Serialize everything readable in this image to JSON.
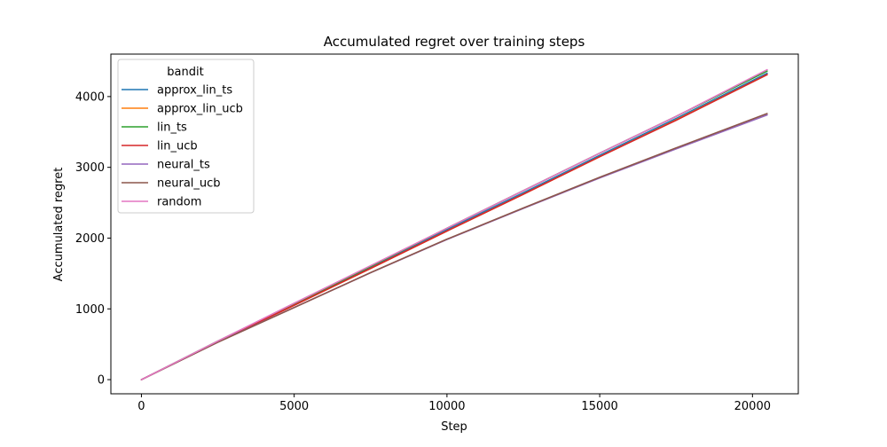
{
  "chart_data": {
    "type": "line",
    "title": "Accumulated regret over training steps",
    "xlabel": "Step",
    "ylabel": "Accumulated regret",
    "xlim": [
      -1000,
      21500
    ],
    "ylim": [
      -200,
      4600
    ],
    "xticks": [
      0,
      5000,
      10000,
      15000,
      20000
    ],
    "xtick_labels": [
      "0",
      "5000",
      "10000",
      "15000",
      "20000"
    ],
    "yticks": [
      0,
      1000,
      2000,
      3000,
      4000
    ],
    "ytick_labels": [
      "0",
      "1000",
      "2000",
      "3000",
      "4000"
    ],
    "grid": false,
    "legend": {
      "title": "bandit",
      "placement": "top-left"
    },
    "x": [
      0,
      2500,
      5000,
      7500,
      10000,
      12500,
      15000,
      17500,
      20480
    ],
    "series": [
      {
        "name": "approx_lin_ts",
        "color": "#1f77b4",
        "values": [
          0,
          540,
          1060,
          1580,
          2120,
          2640,
          3170,
          3690,
          4330
        ]
      },
      {
        "name": "approx_lin_ucb",
        "color": "#ff7f0e",
        "values": [
          0,
          535,
          1050,
          1570,
          2100,
          2620,
          3150,
          3670,
          4310
        ]
      },
      {
        "name": "lin_ts",
        "color": "#2ca02c",
        "values": [
          0,
          545,
          1070,
          1600,
          2140,
          2670,
          3200,
          3720,
          4360
        ]
      },
      {
        "name": "lin_ucb",
        "color": "#d62728",
        "values": [
          0,
          537,
          1052,
          1572,
          2100,
          2620,
          3150,
          3665,
          4310
        ]
      },
      {
        "name": "neural_ts",
        "color": "#9467bd",
        "values": [
          0,
          530,
          1020,
          1510,
          1980,
          2420,
          2850,
          3260,
          3740
        ]
      },
      {
        "name": "neural_ucb",
        "color": "#8c564b",
        "values": [
          0,
          528,
          1018,
          1512,
          1985,
          2425,
          2860,
          3275,
          3760
        ]
      },
      {
        "name": "random",
        "color": "#e377c2",
        "values": [
          0,
          545,
          1080,
          1610,
          2140,
          2670,
          3200,
          3720,
          4380
        ]
      }
    ]
  }
}
